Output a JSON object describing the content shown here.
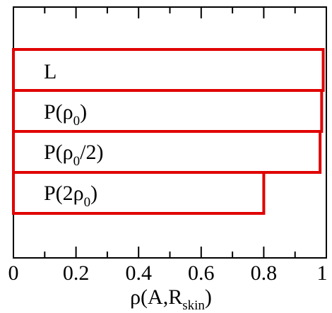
{
  "chart_data": {
    "type": "bar",
    "orientation": "horizontal",
    "categories": [
      "L",
      "P(ρ0)",
      "P(ρ0/2)",
      "P(2ρ0)"
    ],
    "values": [
      0.99,
      0.985,
      0.98,
      0.8
    ],
    "xlim": [
      0,
      1
    ],
    "x_ticks": [
      "0",
      "0.2",
      "0.4",
      "0.6",
      "0.8",
      "1"
    ],
    "xlabel": "ρ(A,Rskin)",
    "bar_color": "#e00000",
    "grid": false,
    "legend": "none"
  },
  "labels": {
    "bar_0": {
      "main": "L"
    },
    "bar_1": {
      "pre": "P(ρ",
      "sub": "0",
      "post": ")"
    },
    "bar_2": {
      "pre": "P(ρ",
      "sub": "0",
      "post": "/2)"
    },
    "bar_3": {
      "pre": "P(2ρ",
      "sub": "0",
      "post": ")"
    },
    "xlabel": {
      "pre": "ρ(A,R",
      "sub": "skin",
      "post": ")"
    }
  }
}
